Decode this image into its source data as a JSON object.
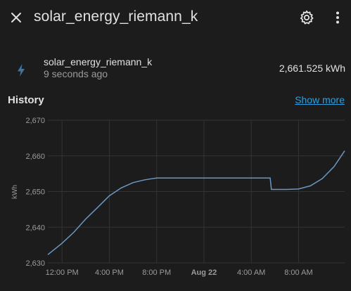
{
  "header": {
    "title": "solar_energy_riemann_k",
    "close_icon": "close-icon",
    "settings_icon": "gear-icon",
    "menu_icon": "more-vertical-icon"
  },
  "entity": {
    "icon": "lightning-bolt-icon",
    "name": "solar_energy_riemann_k",
    "last_changed": "9 seconds ago",
    "value": "2,661.525 kWh"
  },
  "history": {
    "title": "History",
    "show_more": "Show more"
  },
  "colors": {
    "background": "#1c1c1c",
    "line": "#6b97c4",
    "link": "#2d9fe0",
    "icon": "#44739e"
  },
  "chart_data": {
    "type": "line",
    "ylabel": "kWh",
    "ylim": [
      2630,
      2670
    ],
    "yticks": [
      "2,630",
      "2,640",
      "2,650",
      "2,660",
      "2,670"
    ],
    "xticks": [
      {
        "label": "12:00 PM",
        "bold": false
      },
      {
        "label": "4:00 PM",
        "bold": false
      },
      {
        "label": "8:00 PM",
        "bold": false
      },
      {
        "label": "Aug 22",
        "bold": true
      },
      {
        "label": "4:00 AM",
        "bold": false
      },
      {
        "label": "8:00 AM",
        "bold": false
      }
    ],
    "x_hours": [
      10.8,
      12,
      13,
      14,
      15,
      16,
      17,
      18,
      19,
      20,
      21,
      22,
      23,
      24,
      25,
      26,
      27,
      28,
      29,
      29.6,
      29.7,
      30,
      31,
      32,
      33,
      34,
      35,
      35.9
    ],
    "series": [
      {
        "values": [
          2632.3,
          2635.5,
          2638.6,
          2642.3,
          2645.5,
          2648.8,
          2651.0,
          2652.5,
          2653.3,
          2653.8,
          2653.8,
          2653.8,
          2653.8,
          2653.8,
          2653.8,
          2653.8,
          2653.8,
          2653.8,
          2653.8,
          2653.8,
          2650.6,
          2650.6,
          2650.6,
          2650.7,
          2651.6,
          2653.6,
          2657.0,
          2661.4
        ]
      }
    ],
    "grid": true,
    "legend": "none"
  }
}
